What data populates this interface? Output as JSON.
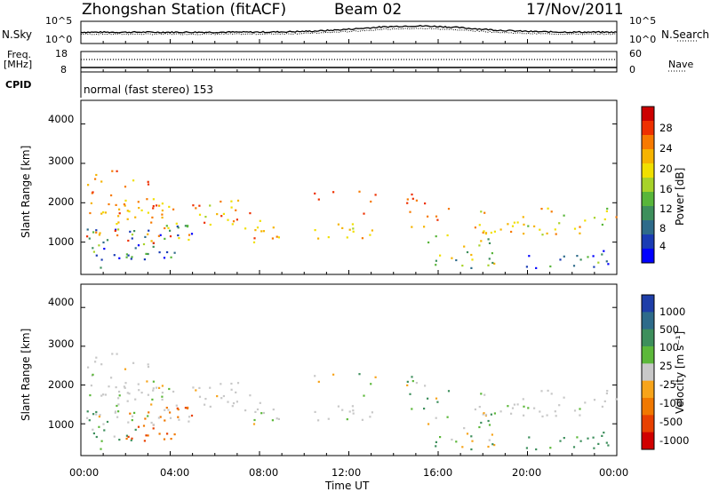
{
  "header": {
    "station": "Zhongshan Station (fitACF)",
    "beam": "Beam 02",
    "date": "17/Nov/2011"
  },
  "labels": {
    "nsky": "N.Sky",
    "nsearch": "N.Search",
    "freq": "Freq.",
    "mhz": "[MHz]",
    "nave": "Nave",
    "cpid": "CPID",
    "program": "normal (fast stereo) 153",
    "slant_range": "Slant Range [km]",
    "xlabel": "Time UT",
    "power_label": "Power [dB]",
    "velocity_label": "Velocity [m s⁻¹]"
  },
  "noise_panel": {
    "left_ticks": [
      "10^5",
      "10^0"
    ],
    "right_ticks": [
      "10^5",
      "10^0"
    ]
  },
  "freq_panel": {
    "left_ticks": [
      "18",
      "8"
    ],
    "right_ticks": [
      "60",
      "0"
    ]
  },
  "chart_data": [
    {
      "type": "heatmap",
      "panel": "power",
      "xlabel": "Time UT",
      "ylabel": "Slant Range [km]",
      "x_ticks": [
        "00:00",
        "04:00",
        "08:00",
        "12:00",
        "16:00",
        "20:00",
        "00:00"
      ],
      "xlim_hours": [
        0,
        24
      ],
      "y_ticks": [
        4000,
        3000,
        2000,
        1000
      ],
      "ylim_km": [
        180,
        4600
      ],
      "colorbar": {
        "label": "Power [dB]",
        "ticks": [
          28,
          24,
          20,
          16,
          12,
          8,
          4
        ],
        "range": [
          0,
          30
        ],
        "colors": [
          "#0000ff",
          "#1a3cb4",
          "#2e6b8a",
          "#3d8f5c",
          "#58b63a",
          "#a7d229",
          "#f0e000",
          "#f6b400",
          "#f77a00",
          "#ee3000",
          "#cc0000"
        ]
      }
    },
    {
      "type": "heatmap",
      "panel": "velocity",
      "xlabel": "Time UT",
      "ylabel": "Slant Range [km]",
      "x_ticks": [
        "00:00",
        "04:00",
        "08:00",
        "12:00",
        "16:00",
        "20:00",
        "00:00"
      ],
      "xlim_hours": [
        0,
        24
      ],
      "y_ticks": [
        4000,
        3000,
        2000,
        1000
      ],
      "ylim_km": [
        180,
        4600
      ],
      "colorbar": {
        "label": "Velocity [m s⁻¹]",
        "ticks": [
          "1000",
          "500",
          "100",
          "25",
          "-25",
          "-100",
          "-500",
          "-1000"
        ],
        "colors": [
          "#1e3ea8",
          "#2e6b8a",
          "#3d8f5c",
          "#5cb83a",
          "#c8c8c8",
          "#f7a41a",
          "#f07800",
          "#e84000",
          "#d00000"
        ]
      }
    }
  ]
}
